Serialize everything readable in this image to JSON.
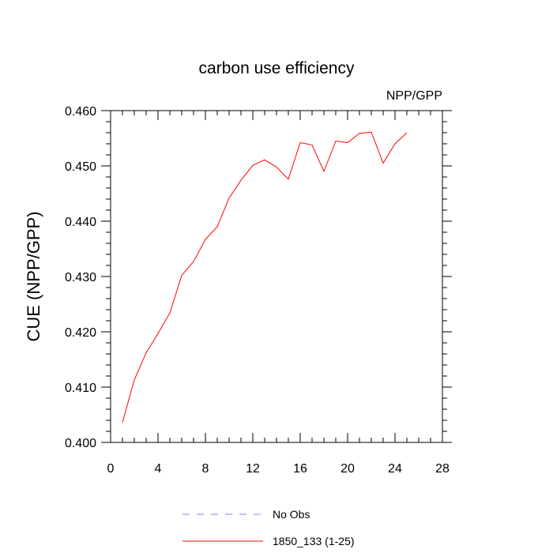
{
  "chart_data": {
    "type": "line",
    "title": "carbon use efficiency",
    "subtitle": "NPP/GPP",
    "xlabel": "",
    "ylabel": "CUE  (NPP/GPP)",
    "xlim": [
      0,
      28
    ],
    "ylim": [
      0.4,
      0.46
    ],
    "x_ticks": [
      0,
      4,
      8,
      12,
      16,
      20,
      24,
      28
    ],
    "x_tick_labels": [
      "0",
      "4",
      "8",
      "12",
      "16",
      "20",
      "24",
      "28"
    ],
    "y_ticks": [
      0.4,
      0.41,
      0.42,
      0.43,
      0.44,
      0.45,
      0.46
    ],
    "y_tick_labels": [
      "0.400",
      "0.410",
      "0.420",
      "0.430",
      "0.440",
      "0.450",
      "0.460"
    ],
    "grid": false,
    "series": [
      {
        "name": "1850_133 (1-25)",
        "color": "#ff0000",
        "dash": "solid",
        "x": [
          1,
          2,
          3,
          4,
          5,
          6,
          7,
          8,
          9,
          10,
          11,
          12,
          13,
          14,
          15,
          16,
          17,
          18,
          19,
          20,
          21,
          22,
          23,
          24,
          25
        ],
        "y": [
          0.4036,
          0.4113,
          0.4162,
          0.4197,
          0.4234,
          0.4302,
          0.4327,
          0.4367,
          0.439,
          0.4442,
          0.4474,
          0.4501,
          0.4511,
          0.4498,
          0.4476,
          0.4542,
          0.4538,
          0.449,
          0.4545,
          0.4542,
          0.4559,
          0.4561,
          0.4505,
          0.454,
          0.456
        ]
      }
    ],
    "legend": {
      "placement": "bottom",
      "entries": [
        {
          "label": "No Obs",
          "color": "#8080ff",
          "dash": "dashed"
        },
        {
          "label": "1850_133 (1-25)",
          "color": "#ff0000",
          "dash": "solid"
        }
      ]
    }
  }
}
